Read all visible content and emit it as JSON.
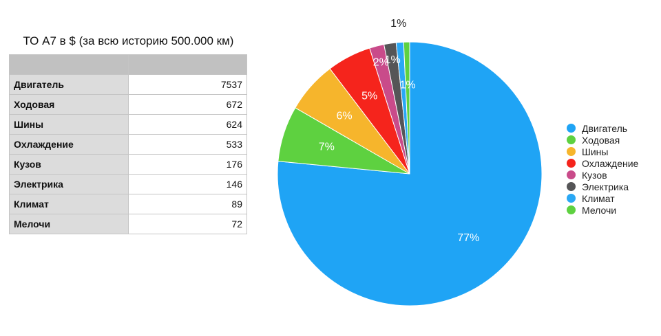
{
  "table": {
    "title": "ТО А7 в $ (за всю историю 500.000 км)",
    "rows": [
      {
        "label": "Двигатель",
        "value": "7537"
      },
      {
        "label": "Ходовая",
        "value": "672"
      },
      {
        "label": "Шины",
        "value": "624"
      },
      {
        "label": "Охлаждение",
        "value": "533"
      },
      {
        "label": "Кузов",
        "value": "176"
      },
      {
        "label": "Электрика",
        "value": "146"
      },
      {
        "label": "Климат",
        "value": "89"
      },
      {
        "label": "Мелочи",
        "value": "72"
      }
    ]
  },
  "chart_data": {
    "type": "pie",
    "categories": [
      "Двигатель",
      "Ходовая",
      "Шины",
      "Охлаждение",
      "Кузов",
      "Электрика",
      "Климат",
      "Мелочи"
    ],
    "values": [
      7537,
      672,
      624,
      533,
      176,
      146,
      89,
      72
    ],
    "percent_labels": [
      "77%",
      "7%",
      "6%",
      "5%",
      "2%",
      "1%",
      "1%",
      "1%"
    ],
    "colors": [
      "#1fa4f5",
      "#5ed140",
      "#f6b52c",
      "#f5241c",
      "#c94b8a",
      "#555557",
      "#2aa8f5",
      "#5ed140"
    ],
    "legend_position": "right"
  }
}
